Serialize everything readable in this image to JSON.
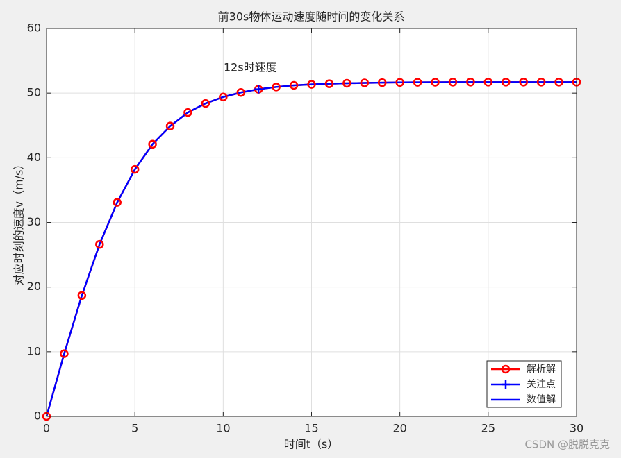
{
  "chart_data": {
    "type": "line",
    "title": "前30s物体运动速度随时间的变化关系",
    "xlabel": "时间t（s）",
    "ylabel": "对应时刻的速度v（m/s）",
    "annotation": "12s时速度",
    "x": [
      0,
      1,
      2,
      3,
      4,
      5,
      6,
      7,
      8,
      9,
      10,
      11,
      12,
      13,
      14,
      15,
      16,
      17,
      18,
      19,
      20,
      21,
      22,
      23,
      24,
      25,
      26,
      27,
      28,
      29,
      30
    ],
    "series": [
      {
        "name": "解析解",
        "color": "#ff0000",
        "marker": "o",
        "values": [
          0,
          9.7,
          18.7,
          26.6,
          33.1,
          38.2,
          42.1,
          44.9,
          47.0,
          48.4,
          49.4,
          50.1,
          50.6,
          50.95,
          51.2,
          51.35,
          51.45,
          51.52,
          51.58,
          51.62,
          51.65,
          51.67,
          51.68,
          51.69,
          51.7,
          51.7,
          51.7,
          51.7,
          51.7,
          51.7,
          51.7
        ]
      },
      {
        "name": "关注点",
        "color": "#0000ff",
        "marker": "+",
        "x": [
          12
        ],
        "values": [
          50.6
        ]
      },
      {
        "name": "数值解",
        "color": "#0000ff",
        "marker": "none",
        "values": [
          0,
          9.7,
          18.7,
          26.6,
          33.1,
          38.2,
          42.1,
          44.9,
          47.0,
          48.4,
          49.4,
          50.1,
          50.6,
          50.95,
          51.2,
          51.35,
          51.45,
          51.52,
          51.58,
          51.62,
          51.65,
          51.67,
          51.68,
          51.69,
          51.7,
          51.7,
          51.7,
          51.7,
          51.7,
          51.7,
          51.7
        ]
      }
    ],
    "xlim": [
      0,
      30
    ],
    "xticks": [
      0,
      5,
      10,
      15,
      20,
      25,
      30
    ],
    "ylim": [
      0,
      60
    ],
    "yticks": [
      0,
      10,
      20,
      30,
      40,
      50,
      60
    ],
    "grid": true,
    "legend": "southeast"
  },
  "watermark": "CSDN @脱脱克克"
}
